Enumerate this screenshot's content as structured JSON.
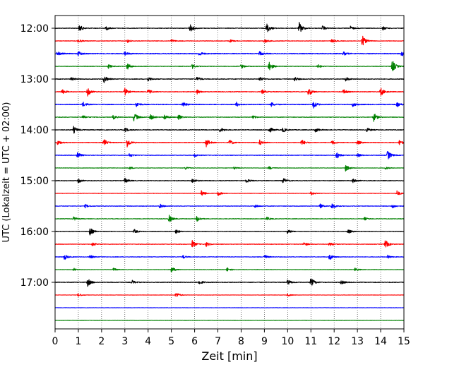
{
  "chart_data": {
    "type": "line",
    "title": "",
    "xlabel": "Zeit  [min]",
    "ylabel": "UTC (Lokalzeit = UTC + 02:00)",
    "xlim": [
      0,
      15
    ],
    "x_ticks": [
      0,
      1,
      2,
      3,
      4,
      5,
      6,
      7,
      8,
      9,
      10,
      11,
      12,
      13,
      14,
      15
    ],
    "y_tick_labels": [
      "12:00",
      "13:00",
      "14:00",
      "15:00",
      "16:00",
      "17:00"
    ],
    "trace_interval_min": 15,
    "start_time": "12:00",
    "grid": "vertical dotted",
    "color_cycle": [
      "#000000",
      "#ff0000",
      "#0000ff",
      "#008000"
    ],
    "traces": [
      {
        "start": "12:00",
        "color": "#000000",
        "noise": 0.5,
        "events": [
          [
            1.05,
            1.6
          ],
          [
            2.2,
            0.9
          ],
          [
            5.8,
            1.8
          ],
          [
            9.1,
            2.4
          ],
          [
            10.5,
            2.7
          ],
          [
            11.5,
            1.1
          ],
          [
            12.7,
            0.9
          ],
          [
            14.1,
            0.8
          ]
        ]
      },
      {
        "start": "12:15",
        "color": "#ff0000",
        "noise": 0.4,
        "events": [
          [
            1.0,
            0.8
          ],
          [
            3.1,
            0.9
          ],
          [
            5.0,
            0.7
          ],
          [
            7.5,
            0.7
          ],
          [
            9.0,
            1.0
          ],
          [
            11.9,
            0.8
          ],
          [
            13.2,
            2.8
          ]
        ]
      },
      {
        "start": "12:30",
        "color": "#0000ff",
        "noise": 0.6,
        "events": [
          [
            0.1,
            1.0
          ],
          [
            1.0,
            1.2
          ],
          [
            3.0,
            1.0
          ],
          [
            6.2,
            1.1
          ],
          [
            8.8,
            1.0
          ],
          [
            12.4,
            0.9
          ],
          [
            14.9,
            1.4
          ]
        ]
      },
      {
        "start": "12:45",
        "color": "#008000",
        "noise": 0.4,
        "events": [
          [
            2.3,
            0.9
          ],
          [
            3.1,
            1.6
          ],
          [
            5.9,
            1.1
          ],
          [
            8.0,
            1.0
          ],
          [
            9.2,
            2.3
          ],
          [
            11.3,
            0.9
          ],
          [
            14.5,
            3.0
          ]
        ]
      },
      {
        "start": "13:00",
        "color": "#000000",
        "noise": 0.5,
        "events": [
          [
            0.7,
            0.8
          ],
          [
            2.1,
            1.8
          ],
          [
            4.0,
            1.0
          ],
          [
            6.1,
            1.1
          ],
          [
            8.8,
            1.2
          ],
          [
            10.3,
            1.0
          ],
          [
            12.5,
            1.0
          ]
        ]
      },
      {
        "start": "13:15",
        "color": "#ff0000",
        "noise": 0.5,
        "events": [
          [
            0.3,
            1.2
          ],
          [
            1.4,
            2.0
          ],
          [
            3.0,
            1.8
          ],
          [
            4.0,
            1.2
          ],
          [
            6.1,
            1.1
          ],
          [
            8.9,
            1.0
          ],
          [
            10.9,
            2.0
          ],
          [
            12.4,
            1.1
          ],
          [
            14.0,
            2.1
          ]
        ]
      },
      {
        "start": "13:30",
        "color": "#0000ff",
        "noise": 0.6,
        "events": [
          [
            1.2,
            1.1
          ],
          [
            3.5,
            1.1
          ],
          [
            5.5,
            1.2
          ],
          [
            7.8,
            1.0
          ],
          [
            9.3,
            1.0
          ],
          [
            11.1,
            1.8
          ],
          [
            12.8,
            1.0
          ],
          [
            14.7,
            1.3
          ]
        ]
      },
      {
        "start": "13:45",
        "color": "#008000",
        "noise": 0.4,
        "events": [
          [
            1.2,
            0.9
          ],
          [
            2.5,
            1.0
          ],
          [
            3.4,
            2.3
          ],
          [
            4.1,
            1.5
          ],
          [
            4.7,
            1.5
          ],
          [
            5.3,
            1.4
          ],
          [
            8.5,
            0.9
          ],
          [
            13.7,
            2.1
          ]
        ]
      },
      {
        "start": "14:00",
        "color": "#000000",
        "noise": 0.5,
        "events": [
          [
            0.8,
            1.6
          ],
          [
            3.0,
            1.0
          ],
          [
            7.1,
            1.2
          ],
          [
            9.2,
            1.6
          ],
          [
            9.8,
            1.1
          ],
          [
            11.2,
            1.2
          ],
          [
            13.4,
            1.0
          ]
        ]
      },
      {
        "start": "14:15",
        "color": "#ff0000",
        "noise": 0.5,
        "events": [
          [
            0.1,
            1.1
          ],
          [
            2.1,
            1.6
          ],
          [
            3.1,
            2.2
          ],
          [
            6.5,
            1.9
          ],
          [
            7.5,
            1.3
          ],
          [
            8.8,
            1.2
          ],
          [
            10.6,
            1.5
          ],
          [
            11.9,
            1.0
          ],
          [
            13.0,
            1.0
          ],
          [
            14.8,
            1.2
          ]
        ]
      },
      {
        "start": "14:30",
        "color": "#0000ff",
        "noise": 0.4,
        "events": [
          [
            0.95,
            1.8
          ],
          [
            3.2,
            0.9
          ],
          [
            6.0,
            0.8
          ],
          [
            12.1,
            1.8
          ],
          [
            13.0,
            1.1
          ],
          [
            14.3,
            2.4
          ]
        ]
      },
      {
        "start": "14:45",
        "color": "#008000",
        "noise": 0.3,
        "events": [
          [
            3.2,
            0.7
          ],
          [
            5.6,
            0.7
          ],
          [
            7.7,
            0.7
          ],
          [
            9.2,
            0.8
          ],
          [
            12.5,
            1.9
          ],
          [
            14.2,
            0.7
          ]
        ]
      },
      {
        "start": "15:00",
        "color": "#000000",
        "noise": 0.5,
        "events": [
          [
            1.0,
            1.1
          ],
          [
            3.0,
            1.2
          ],
          [
            5.9,
            1.2
          ],
          [
            8.2,
            1.1
          ],
          [
            9.8,
            1.3
          ],
          [
            12.8,
            1.0
          ]
        ]
      },
      {
        "start": "15:15",
        "color": "#ff0000",
        "noise": 0.3,
        "events": [
          [
            6.3,
            1.6
          ],
          [
            7.0,
            1.2
          ],
          [
            11.0,
            1.0
          ],
          [
            14.7,
            1.3
          ]
        ]
      },
      {
        "start": "15:30",
        "color": "#0000ff",
        "noise": 0.4,
        "events": [
          [
            1.3,
            0.8
          ],
          [
            4.5,
            1.0
          ],
          [
            8.6,
            0.8
          ],
          [
            11.4,
            1.0
          ],
          [
            11.9,
            1.5
          ],
          [
            14.5,
            1.0
          ]
        ]
      },
      {
        "start": "15:45",
        "color": "#008000",
        "noise": 0.4,
        "events": [
          [
            0.8,
            0.9
          ],
          [
            4.9,
            1.8
          ],
          [
            6.1,
            1.4
          ],
          [
            9.1,
            0.8
          ],
          [
            13.3,
            0.7
          ]
        ]
      },
      {
        "start": "16:00",
        "color": "#000000",
        "noise": 0.4,
        "events": [
          [
            1.5,
            1.9
          ],
          [
            3.4,
            1.0
          ],
          [
            5.2,
            1.0
          ],
          [
            10.0,
            1.3
          ],
          [
            12.6,
            1.0
          ]
        ]
      },
      {
        "start": "16:15",
        "color": "#ff0000",
        "noise": 0.4,
        "events": [
          [
            1.6,
            0.9
          ],
          [
            5.9,
            1.7
          ],
          [
            6.5,
            1.1
          ],
          [
            10.7,
            1.0
          ],
          [
            11.8,
            1.0
          ],
          [
            14.2,
            2.0
          ]
        ]
      },
      {
        "start": "16:30",
        "color": "#0000ff",
        "noise": 0.4,
        "events": [
          [
            0.4,
            1.4
          ],
          [
            1.5,
            0.9
          ],
          [
            5.5,
            0.8
          ],
          [
            9.0,
            1.0
          ],
          [
            11.8,
            1.6
          ],
          [
            14.3,
            0.8
          ]
        ]
      },
      {
        "start": "16:45",
        "color": "#008000",
        "noise": 0.3,
        "events": [
          [
            0.8,
            0.7
          ],
          [
            2.5,
            0.8
          ],
          [
            5.0,
            1.5
          ],
          [
            7.4,
            1.0
          ],
          [
            12.9,
            0.9
          ]
        ]
      },
      {
        "start": "17:00",
        "color": "#000000",
        "noise": 0.5,
        "events": [
          [
            1.4,
            1.9
          ],
          [
            3.3,
            1.0
          ],
          [
            6.2,
            1.2
          ],
          [
            10.0,
            1.3
          ],
          [
            11.0,
            2.2
          ],
          [
            12.3,
            1.0
          ]
        ]
      },
      {
        "start": "17:15",
        "color": "#ff0000",
        "noise": 0.25,
        "events": [
          [
            1.0,
            0.8
          ],
          [
            5.2,
            1.5
          ],
          [
            10.0,
            0.6
          ]
        ]
      },
      {
        "start": "17:30",
        "color": "#0000ff",
        "noise": 0.25,
        "events": []
      },
      {
        "start": "17:45",
        "color": "#008000",
        "noise": 0.25,
        "events": []
      }
    ]
  }
}
